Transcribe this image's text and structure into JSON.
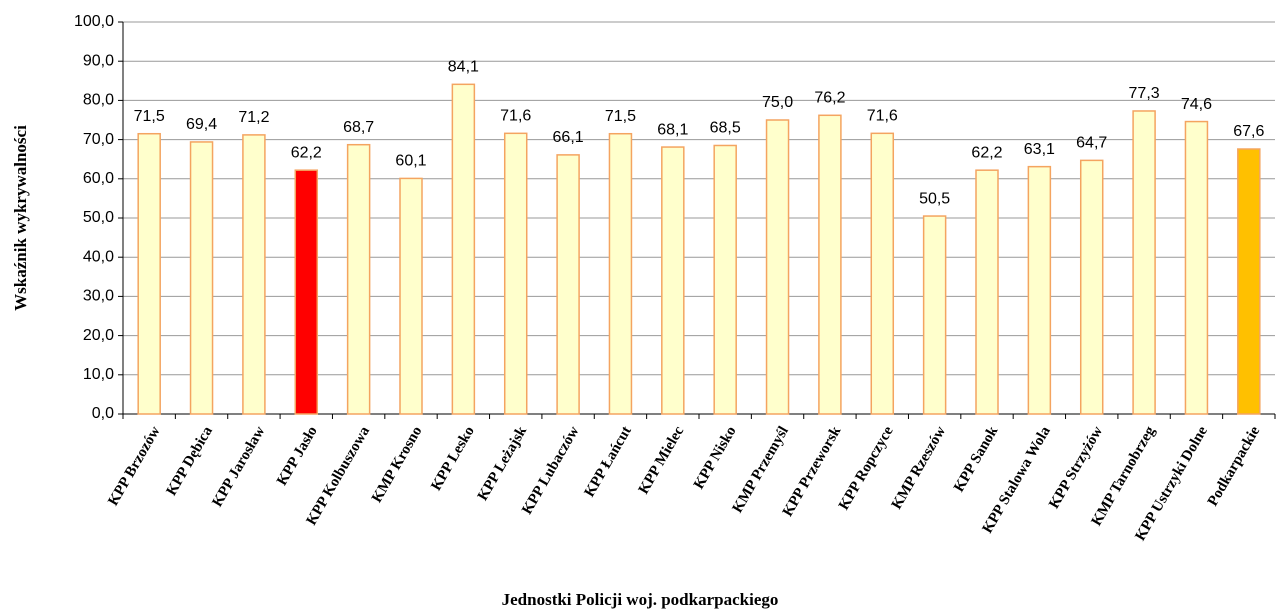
{
  "chart_data": {
    "type": "bar",
    "x_label": "Jednostki Policji woj. podkarpackiego",
    "y_label": "Wskaźnik wykrywalności",
    "categories": [
      "KPP Brzozów",
      "KPP Dębica",
      "KPP Jarosław",
      "KPP Jasło",
      "KPP Kolbuszowa",
      "KMP Krosno",
      "KPP Lesko",
      "KPP Leżajsk",
      "KPP Lubaczów",
      "KPP Łańcut",
      "KPP Mielec",
      "KPP Nisko",
      "KMP Przemyśl",
      "KPP Przeworsk",
      "KPP Ropczyce",
      "KMP Rzeszów",
      "KPP Sanok",
      "KPP Stalowa Wola",
      "KPP Strzyżów",
      "KMP Tarnobrzeg",
      "KPP Ustrzyki Dolne",
      "Podkarpackie"
    ],
    "values": [
      71.5,
      69.4,
      71.2,
      62.2,
      68.7,
      60.1,
      84.1,
      71.6,
      66.1,
      71.5,
      68.1,
      68.5,
      75.0,
      76.2,
      71.6,
      50.5,
      62.2,
      63.1,
      64.7,
      77.3,
      74.6,
      67.6
    ],
    "value_labels": [
      "71,5",
      "69,4",
      "71,2",
      "62,2",
      "68,7",
      "60,1",
      "84,1",
      "71,6",
      "66,1",
      "71,5",
      "68,1",
      "68,5",
      "75,0",
      "76,2",
      "71,6",
      "50,5",
      "62,2",
      "63,1",
      "64,7",
      "77,3",
      "74,6",
      "67,6"
    ],
    "colors": [
      "#ffffcc",
      "#ffffcc",
      "#ffffcc",
      "#ff0000",
      "#ffffcc",
      "#ffffcc",
      "#ffffcc",
      "#ffffcc",
      "#ffffcc",
      "#ffffcc",
      "#ffffcc",
      "#ffffcc",
      "#ffffcc",
      "#ffffcc",
      "#ffffcc",
      "#ffffcc",
      "#ffffcc",
      "#ffffcc",
      "#ffffcc",
      "#ffffcc",
      "#ffffcc",
      "#ffc000"
    ],
    "border_color": "#f4a460",
    "ylim": [
      0,
      100
    ],
    "yticks": [
      {
        "value": 0,
        "label": "0,0"
      },
      {
        "value": 10,
        "label": "10,0"
      },
      {
        "value": 20,
        "label": "20,0"
      },
      {
        "value": 30,
        "label": "30,0"
      },
      {
        "value": 40,
        "label": "40,0"
      },
      {
        "value": 50,
        "label": "50,0"
      },
      {
        "value": 60,
        "label": "60,0"
      },
      {
        "value": 70,
        "label": "70,0"
      },
      {
        "value": 80,
        "label": "80,0"
      },
      {
        "value": 90,
        "label": "90,0"
      },
      {
        "value": 100,
        "label": "100,0"
      }
    ],
    "grid": true
  }
}
